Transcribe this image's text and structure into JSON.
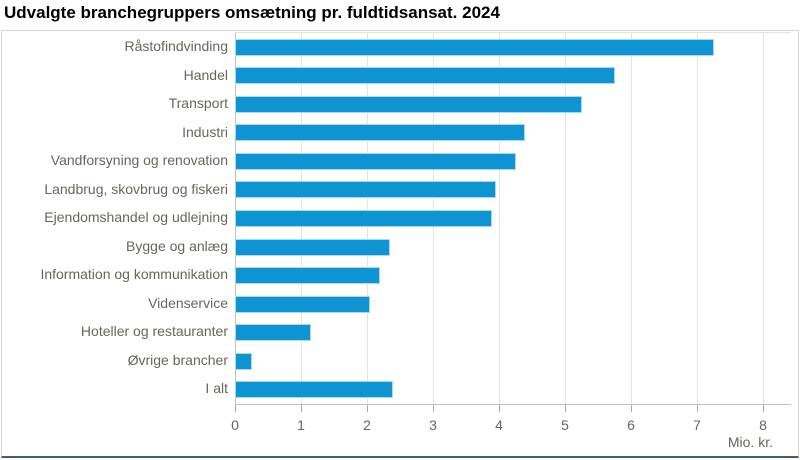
{
  "title": "Udvalgte branchegruppers omsætning pr. fuldtidsansat. 2024",
  "chart_data": {
    "type": "bar",
    "orientation": "horizontal",
    "title": "Udvalgte branchegruppers omsætning pr. fuldtidsansat. 2024",
    "categories": [
      "Råstofindvinding",
      "Handel",
      "Transport",
      "Industri",
      "Vandforsyning og renovation",
      "Landbrug, skovbrug og fiskeri",
      "Ejendomshandel og udlejning",
      "Bygge og anlæg",
      "Information og kommunikation",
      "Videnservice",
      "Hoteller og restauranter",
      "Øvrige brancher",
      "I alt"
    ],
    "values": [
      7.25,
      5.75,
      5.25,
      4.4,
      4.25,
      3.95,
      3.9,
      2.35,
      2.2,
      2.05,
      1.15,
      0.25,
      2.4
    ],
    "xlabel": "Mio. kr.",
    "xlim": [
      0,
      8
    ],
    "xticks": [
      0,
      1,
      2,
      3,
      4,
      5,
      6,
      7,
      8
    ],
    "grid": "vertical-only",
    "legend": "none",
    "bar_color": "#0e94d2",
    "bar_border_color": "#a9d9f0"
  },
  "colors": {
    "title_text": "#000000",
    "label_text": "#67665c",
    "gridline": "#e4e4da",
    "axis_line": "#c2c2b8",
    "frame_border": "#d8d8ce",
    "bottom_accent_line": "#40616f"
  }
}
